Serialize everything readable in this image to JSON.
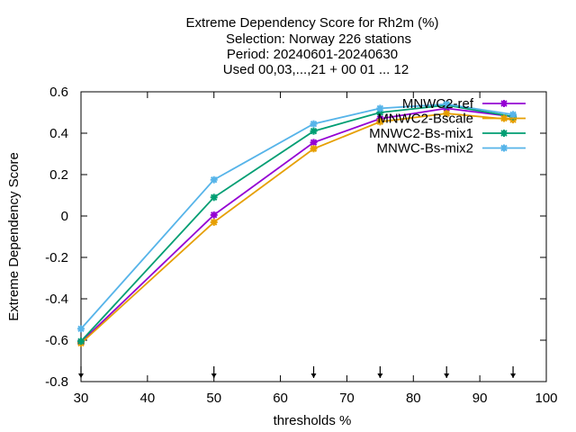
{
  "chart_data": {
    "type": "line",
    "title_lines": [
      "Extreme Dependency Score  for Rh2m (%)",
      "Selection: Norway    226 stations",
      "Period: 20240601-20240630",
      "Used 00,03,...,21 + 00 01 ... 12"
    ],
    "xlabel": "thresholds %",
    "ylabel": "Extreme Dependency Score",
    "xlim": [
      30,
      100
    ],
    "ylim": [
      -0.8,
      0.6
    ],
    "xticks": [
      30,
      40,
      50,
      60,
      70,
      80,
      90,
      100
    ],
    "yticks": [
      -0.8,
      -0.6,
      -0.4,
      -0.2,
      0,
      0.2,
      0.4,
      0.6
    ],
    "ytick_labels": [
      "-0.8",
      "-0.6",
      "-0.4",
      "-0.2",
      "0",
      "0.2",
      "0.4",
      "0.6"
    ],
    "grid": false,
    "legend_position": "top-right",
    "threshold_markers": [
      30,
      50,
      65,
      75,
      85,
      95
    ],
    "x": [
      30,
      50,
      65,
      75,
      85,
      95
    ],
    "series": [
      {
        "name": "MNWC2-ref",
        "color": "#9400d3",
        "values": [
          -0.61,
          0.005,
          0.355,
          0.47,
          0.52,
          0.48
        ]
      },
      {
        "name": "MNWC2-Bscale",
        "color": "#e69f00",
        "values": [
          -0.615,
          -0.03,
          0.325,
          0.455,
          0.495,
          0.465
        ]
      },
      {
        "name": "MNWC2-Bs-mix1",
        "color": "#009e73",
        "values": [
          -0.605,
          0.09,
          0.41,
          0.5,
          0.535,
          0.48
        ]
      },
      {
        "name": "MNWC-Bs-mix2",
        "color": "#56b4e9",
        "values": [
          -0.545,
          0.175,
          0.445,
          0.52,
          0.54,
          0.49
        ]
      }
    ]
  }
}
